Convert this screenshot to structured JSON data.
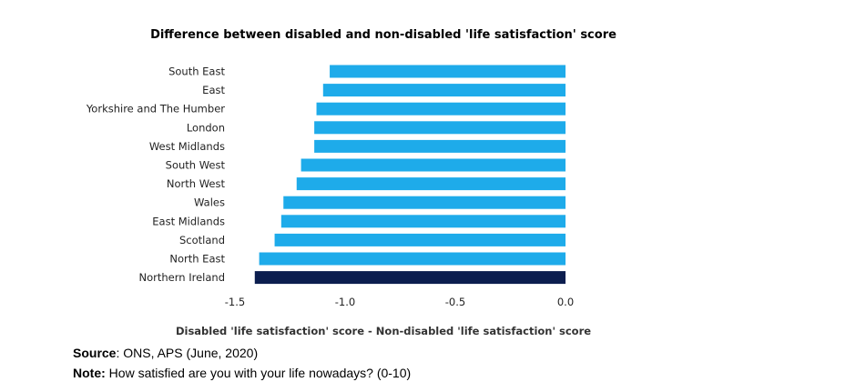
{
  "chart_data": {
    "type": "bar",
    "orientation": "horizontal",
    "title": "Difference between disabled and non-disabled 'life satisfaction' score",
    "xlabel": "Disabled 'life satisfaction' score - Non-disabled 'life satisfaction' score",
    "ylabel": "",
    "xlim": [
      -1.5,
      0.0
    ],
    "xticks": [
      "-1.5",
      "-1.0",
      "-0.5",
      "0.0"
    ],
    "grid": false,
    "categories": [
      "South East",
      "East",
      "Yorkshire and The Humber",
      "London",
      "West Midlands",
      "South West",
      "North West",
      "Wales",
      "East Midlands",
      "Scotland",
      "North East",
      "Northern Ireland"
    ],
    "values": [
      -1.07,
      -1.1,
      -1.13,
      -1.14,
      -1.14,
      -1.2,
      -1.22,
      -1.28,
      -1.29,
      -1.32,
      -1.39,
      -1.41
    ],
    "bar_color": "#1EABEA",
    "highlight": {
      "category": "Northern Ireland",
      "color": "#0C1E4F"
    }
  },
  "footer": {
    "source_label": "Source",
    "source_text": ": ONS, APS (June, 2020)",
    "note_label": "Note:",
    "note_text": " How satisfied are you with your life nowadays?   (0-10)"
  }
}
